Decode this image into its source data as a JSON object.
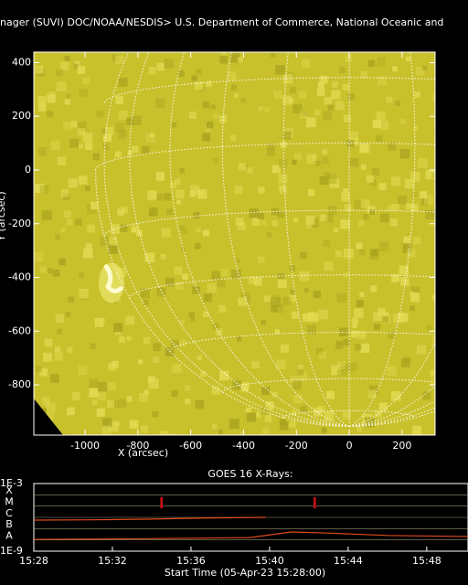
{
  "title": "nager (SUVI) DOC/NOAA/NESDIS> U.S. Department of Commerce, National Oceanic and",
  "chart_data": [
    {
      "type": "image",
      "xlabel": "X (arcsec)",
      "ylabel": "Y (arcsec)",
      "xlim": [
        -1194,
        325
      ],
      "ylim": [
        -987,
        439
      ],
      "xticks": [
        -1000,
        -800,
        -600,
        -400,
        -200,
        0,
        200
      ],
      "yticks": [
        -800,
        -600,
        -400,
        -200,
        0,
        200,
        400
      ],
      "color": "#c9c12c"
    },
    {
      "type": "line",
      "title": "GOES 16 X-Rays:",
      "xlabel": "Start Time (05-Apr-23 15:28:00)",
      "yscale": "log",
      "xlim": [
        0,
        22.1
      ],
      "ylim": [
        1e-09,
        0.001
      ],
      "xticks": [
        {
          "value": 0,
          "label": "15:28"
        },
        {
          "value": 4,
          "label": "15:32"
        },
        {
          "value": 8,
          "label": "15:36"
        },
        {
          "value": 12,
          "label": "15:40"
        },
        {
          "value": 16,
          "label": "15:44"
        },
        {
          "value": 20,
          "label": "15:48"
        }
      ],
      "yticks": [
        {
          "value": 0.001,
          "label": "1E-3"
        },
        {
          "value": 1e-09,
          "label": "1E-9"
        }
      ],
      "flare_classes": [
        {
          "value": 0.0001,
          "label": "X"
        },
        {
          "value": 1e-05,
          "label": "M"
        },
        {
          "value": 1e-06,
          "label": "C"
        },
        {
          "value": 1e-07,
          "label": "B"
        },
        {
          "value": 1e-08,
          "label": "A"
        }
      ],
      "events_x": [
        6.5,
        14.3
      ],
      "event_color": "#d01010",
      "series": [
        {
          "color": "#e04a18",
          "x": [
            0,
            3,
            6,
            9,
            11.8
          ],
          "values": [
            5.7e-07,
            6e-07,
            7e-07,
            9e-07,
            1e-06
          ]
        },
        {
          "color": "#e04a18",
          "x": [
            0,
            6,
            11,
            13.1,
            15,
            18,
            22.1
          ],
          "values": [
            1.1e-08,
            1.3e-08,
            1.6e-08,
            5e-08,
            4e-08,
            2.5e-08,
            2e-08
          ]
        }
      ]
    }
  ]
}
